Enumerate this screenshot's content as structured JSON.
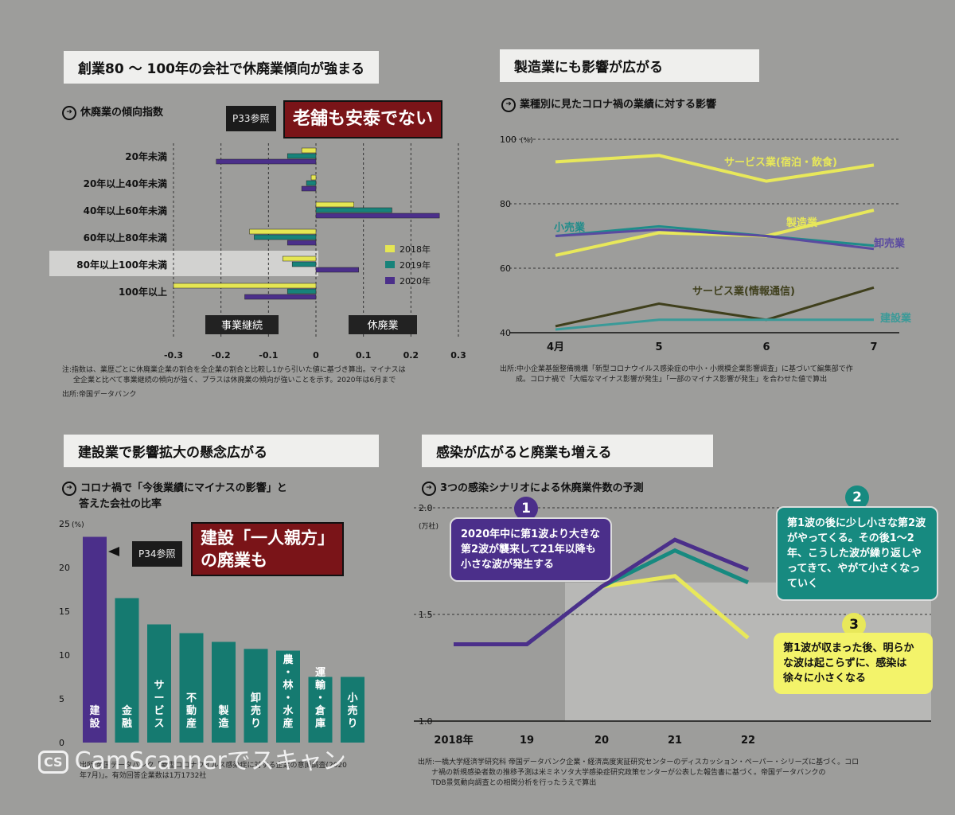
{
  "panel1": {
    "banner": "創業80 〜 100年の会社で休廃業傾向が強まる",
    "subtitle": "休廃業の傾向指数",
    "ref_label": "P33参照",
    "ref_title": "老舗も安泰でない",
    "legend_left": "事業継続",
    "legend_right": "休廃業",
    "note1": "注:指数は、業歴ごとに休廃業企業の割合を全企業の割合と比較し1から引いた値に基づき算出。マイナスは",
    "note2": "全企業と比べて事業継続の傾向が強く、プラスは休廃業の傾向が強いことを示す。2020年は6月まで",
    "source": "出所:帝国データバンク"
  },
  "panel2": {
    "banner": "製造業にも影響が広がる",
    "subtitle": "業種別に見たコロナ禍の業績に対する影響",
    "source1": "出所:中小企業基盤整備機構「新型コロナウイルス感染症の中小・小規模企業影響調査」に基づいて編集部で作",
    "source2": "成。コロナ禍で「大幅なマイナス影響が発生」「一部のマイナス影響が発生」を合わせた値で算出"
  },
  "panel3": {
    "banner": "建設業で影響拡大の懸念広がる",
    "subtitle1": "コロナ禍で「今後業績にマイナスの影響」と",
    "subtitle2": "答えた会社の比率",
    "ref_label": "P34参照",
    "ref_title1": "建設「一人親方」",
    "ref_title2": "の廃業も",
    "source1": "出所:帝国データバンク「新型コロナウイルス感染症に対する企業の意識調査(2020",
    "source2": "年7月)」。有効回答企業数は1万1732社"
  },
  "panel4": {
    "banner": "感染が広がると廃業も増える",
    "subtitle": "3つの感染シナリオによる休廃業件数の予測",
    "b1_num": "1",
    "b1_text": "2020年中に第1波より大きな第2波が襲来して21年以降も小さな波が発生する",
    "b2_num": "2",
    "b2_text": "第1波の後に少し小さな第2波がやってくる。その後1〜2年、こうした波が繰り返しやってきて、やがて小さくなっていく",
    "b3_num": "3",
    "b3_text": "第1波が収まった後、明らかな波は起こらずに、感染は徐々に小さくなる",
    "source1": "出所:一橋大学経済学研究科 帝国データバンク企業・経済高度実証研究センターのディスカッション・ペーパー・シリーズに基づく。コロ",
    "source2": "ナ禍の新規感染者数の推移予測は米ミネソタ大学感染症研究政策センターが公表した報告書に基づく。帝国データバンクの",
    "source3": "TDB景気動向調査との相関分析を行ったうえで算出"
  },
  "watermark": {
    "logo": "CS",
    "text": "CamScannerでスキャン"
  },
  "colors": {
    "y2018": "#e5e653",
    "y2019": "#17837a",
    "y2020": "#4b2f8a",
    "svc_hotel": "#e8e85a",
    "mfg": "#e8e85a",
    "retail": "#1f8c8a",
    "wholesale": "#5a4aa0",
    "svc_info": "#3f3f1c",
    "constr": "#3a9a98",
    "bar": "#157a70",
    "bar_first": "#4b2f8a",
    "s1": "#4b2f8a",
    "s2": "#178a80",
    "s3": "#e8e85a"
  },
  "chart_data": [
    {
      "type": "bar",
      "orientation": "horizontal",
      "categories": [
        "20年未満",
        "20年以上40年未満",
        "40年以上60年未満",
        "60年以上80年未満",
        "80年以上100年未満",
        "100年以上"
      ],
      "series": [
        {
          "name": "2018年",
          "values": [
            -0.03,
            -0.01,
            0.08,
            -0.14,
            -0.07,
            -0.3
          ]
        },
        {
          "name": "2019年",
          "values": [
            -0.06,
            -0.02,
            0.16,
            -0.13,
            -0.05,
            -0.06
          ]
        },
        {
          "name": "2020年",
          "values": [
            -0.21,
            -0.03,
            0.26,
            -0.06,
            0.09,
            -0.15
          ]
        }
      ],
      "xlim": [
        -0.3,
        0.3
      ],
      "xticks": [
        "-0.3",
        "-0.2",
        "-0.1",
        "0",
        "0.1",
        "0.2",
        "0.3"
      ],
      "highlight": "80年以上100年未満",
      "legend": "right"
    },
    {
      "type": "line",
      "x": [
        "4月",
        "5",
        "6",
        "7"
      ],
      "ylim": [
        40,
        100
      ],
      "yticks": [
        "100",
        "80",
        "60",
        "40"
      ],
      "yunit": "(%)",
      "series": [
        {
          "name": "サービス業(宿泊・飲食)",
          "values": [
            93,
            95,
            87,
            92
          ]
        },
        {
          "name": "製造業",
          "values": [
            64,
            71,
            70,
            78
          ]
        },
        {
          "name": "小売業",
          "values": [
            70,
            73,
            70,
            67
          ]
        },
        {
          "name": "卸売業",
          "values": [
            70,
            72,
            70,
            66
          ]
        },
        {
          "name": "サービス業(情報通信)",
          "values": [
            42,
            49,
            44,
            54
          ]
        },
        {
          "name": "建設業",
          "values": [
            41,
            44,
            44,
            44
          ]
        }
      ]
    },
    {
      "type": "bar",
      "categories": [
        "建設",
        "金融",
        "サービス",
        "不動産",
        "製造",
        "卸売り",
        "農・林・水産",
        "運輸・倉庫",
        "小売り"
      ],
      "values": [
        23.5,
        16.5,
        13.5,
        12.5,
        11.5,
        10.7,
        10.5,
        7.5,
        7.5
      ],
      "ylim": [
        0,
        25
      ],
      "yticks": [
        "25",
        "20",
        "15",
        "10",
        "5",
        "0"
      ],
      "yunit": "(%)"
    },
    {
      "type": "line",
      "x": [
        "2018年",
        "19",
        "20",
        "21",
        "22"
      ],
      "ylim": [
        1.0,
        2.0
      ],
      "yticks": [
        "2.0",
        "1.5",
        "1.0"
      ],
      "yunit": "(万社)",
      "series": [
        {
          "values": [
            1.36,
            1.36,
            1.63,
            1.85,
            1.71
          ]
        },
        {
          "values": [
            1.36,
            1.36,
            1.63,
            1.8,
            1.65
          ]
        },
        {
          "values": [
            1.36,
            1.36,
            1.63,
            1.68,
            1.39
          ]
        }
      ]
    }
  ]
}
